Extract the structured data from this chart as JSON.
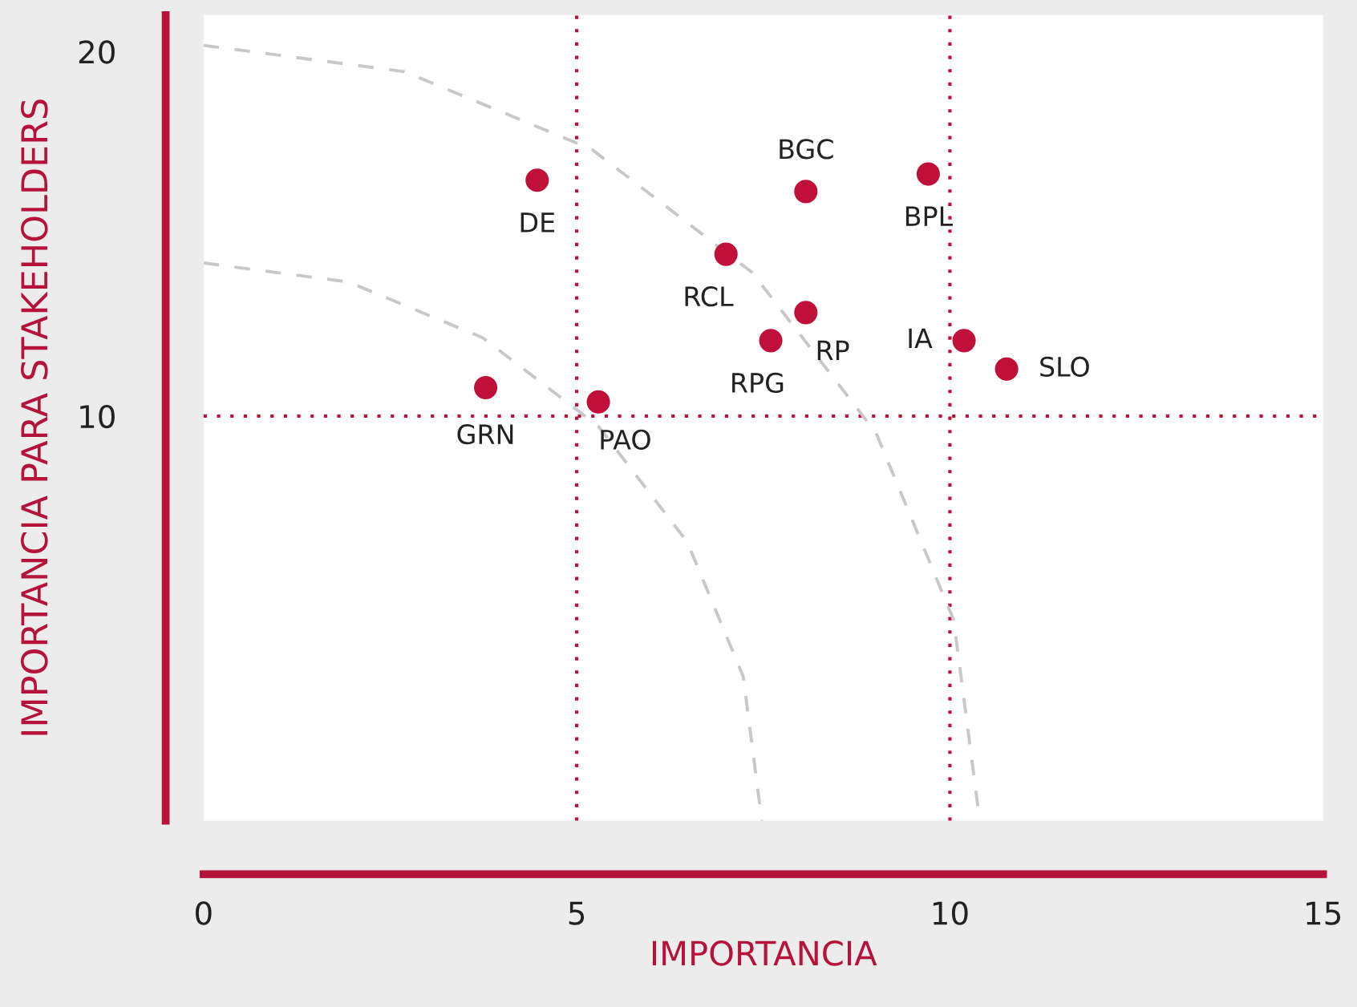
{
  "chart_data": {
    "type": "scatter",
    "xlabel": "IMPORTANCIA",
    "ylabel": "IMPORTANCIA PARA STAKEHOLDERS",
    "xlim": [
      0,
      15
    ],
    "ylim": [
      -1.1,
      21
    ],
    "xticks": [
      0,
      5,
      10,
      15
    ],
    "yticks": [
      10,
      20
    ],
    "grid": false,
    "marker": "circle",
    "series": [
      {
        "color": "#c0103a",
        "x": [
          4.47,
          8.07,
          9.71,
          7.0,
          8.07,
          7.6,
          10.19,
          10.76,
          3.78,
          5.29
        ],
        "values": [
          16.47,
          16.16,
          16.64,
          14.44,
          12.84,
          12.07,
          12.07,
          11.29,
          10.78,
          10.39
        ]
      },
      {
        "type": "line",
        "color": "#c8c8c8",
        "line_style": "dashed",
        "marker": "none",
        "x": [
          0,
          1.94,
          3.74,
          5.29,
          6.48,
          7.23,
          7.48
        ],
        "values": [
          14.2,
          13.68,
          12.15,
          9.72,
          6.55,
          2.86,
          -1.1
        ]
      },
      {
        "type": "line",
        "color": "#c8c8c8",
        "line_style": "dashed",
        "marker": "none",
        "x": [
          0,
          2.69,
          5.2,
          7.35,
          9.01,
          10.05,
          10.4
        ],
        "values": [
          20.17,
          19.45,
          17.32,
          13.94,
          9.54,
          4.41,
          -1.1
        ]
      }
    ],
    "ref_lines": [
      {
        "axis": "x",
        "value": 5,
        "color": "#c0103a",
        "line_style": "dotted"
      },
      {
        "axis": "x",
        "value": 10,
        "color": "#c0103a",
        "line_style": "dotted"
      },
      {
        "axis": "y",
        "value": 10,
        "color": "#c0103a",
        "line_style": "dotted"
      }
    ],
    "annotations": [
      {
        "text": "DE",
        "x": 4.47,
        "y": 16.47
      },
      {
        "text": "BGC",
        "x": 8.07,
        "y": 16.16
      },
      {
        "text": "BPL",
        "x": 9.71,
        "y": 16.64
      },
      {
        "text": "RCL",
        "x": 7.0,
        "y": 14.44
      },
      {
        "text": "RP",
        "x": 8.07,
        "y": 12.84
      },
      {
        "text": "RPG",
        "x": 7.6,
        "y": 12.07
      },
      {
        "text": "IA",
        "x": 10.19,
        "y": 12.07
      },
      {
        "text": "SLO",
        "x": 10.76,
        "y": 11.29
      },
      {
        "text": "GRN",
        "x": 3.78,
        "y": 10.78
      },
      {
        "text": "PAO",
        "x": 5.29,
        "y": 10.39
      }
    ]
  }
}
